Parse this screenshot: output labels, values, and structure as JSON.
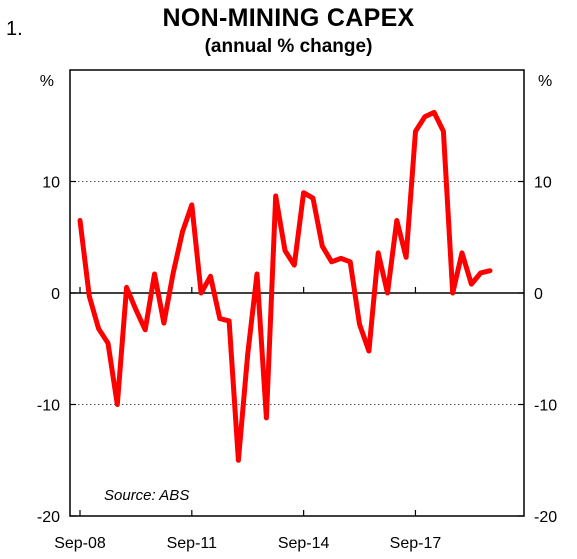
{
  "figure_number": "1.",
  "chart_data": {
    "type": "line",
    "title": "NON-MINING CAPEX",
    "subtitle": "(annual % change)",
    "y_unit_left": "%",
    "y_unit_right": "%",
    "ylim": [
      -20,
      20
    ],
    "yticks": [
      -20,
      -10,
      0,
      10
    ],
    "ytick_labels": [
      "-20",
      "-10",
      "0",
      "10"
    ],
    "x_tick_labels": [
      "Sep-08",
      "Sep-11",
      "Sep-14",
      "Sep-17"
    ],
    "x_tick_quarters": [
      0,
      12,
      24,
      36
    ],
    "xlim_quarters": [
      0,
      46
    ],
    "grid": "dotted horizontal at 10 and -10",
    "source": "Source: ABS",
    "series_color": "#ff0000",
    "series": [
      {
        "quarters": [
          0,
          1,
          2,
          3,
          4,
          5,
          6,
          7,
          8,
          9,
          10,
          11,
          12,
          13,
          14,
          15,
          16,
          17,
          18,
          19,
          20,
          21,
          22,
          23,
          24,
          25,
          26,
          27,
          28,
          29,
          30,
          31,
          32,
          33,
          34,
          35,
          36,
          37,
          38,
          39,
          40,
          41,
          42,
          43,
          44
        ],
        "values": [
          6.5,
          -0.3,
          -3.2,
          -4.5,
          -10.0,
          0.5,
          -1.5,
          -3.3,
          1.7,
          -2.7,
          1.8,
          5.5,
          7.9,
          0.0,
          1.5,
          -2.3,
          -2.5,
          -15.0,
          -5.5,
          1.7,
          -11.2,
          8.7,
          3.8,
          2.5,
          9.0,
          8.5,
          4.2,
          2.8,
          3.1,
          2.8,
          -2.8,
          -5.2,
          3.6,
          0.0,
          6.5,
          3.2,
          14.5,
          15.8,
          16.2,
          14.5,
          0.0,
          3.6,
          0.8,
          1.8,
          2.0
        ]
      }
    ]
  }
}
